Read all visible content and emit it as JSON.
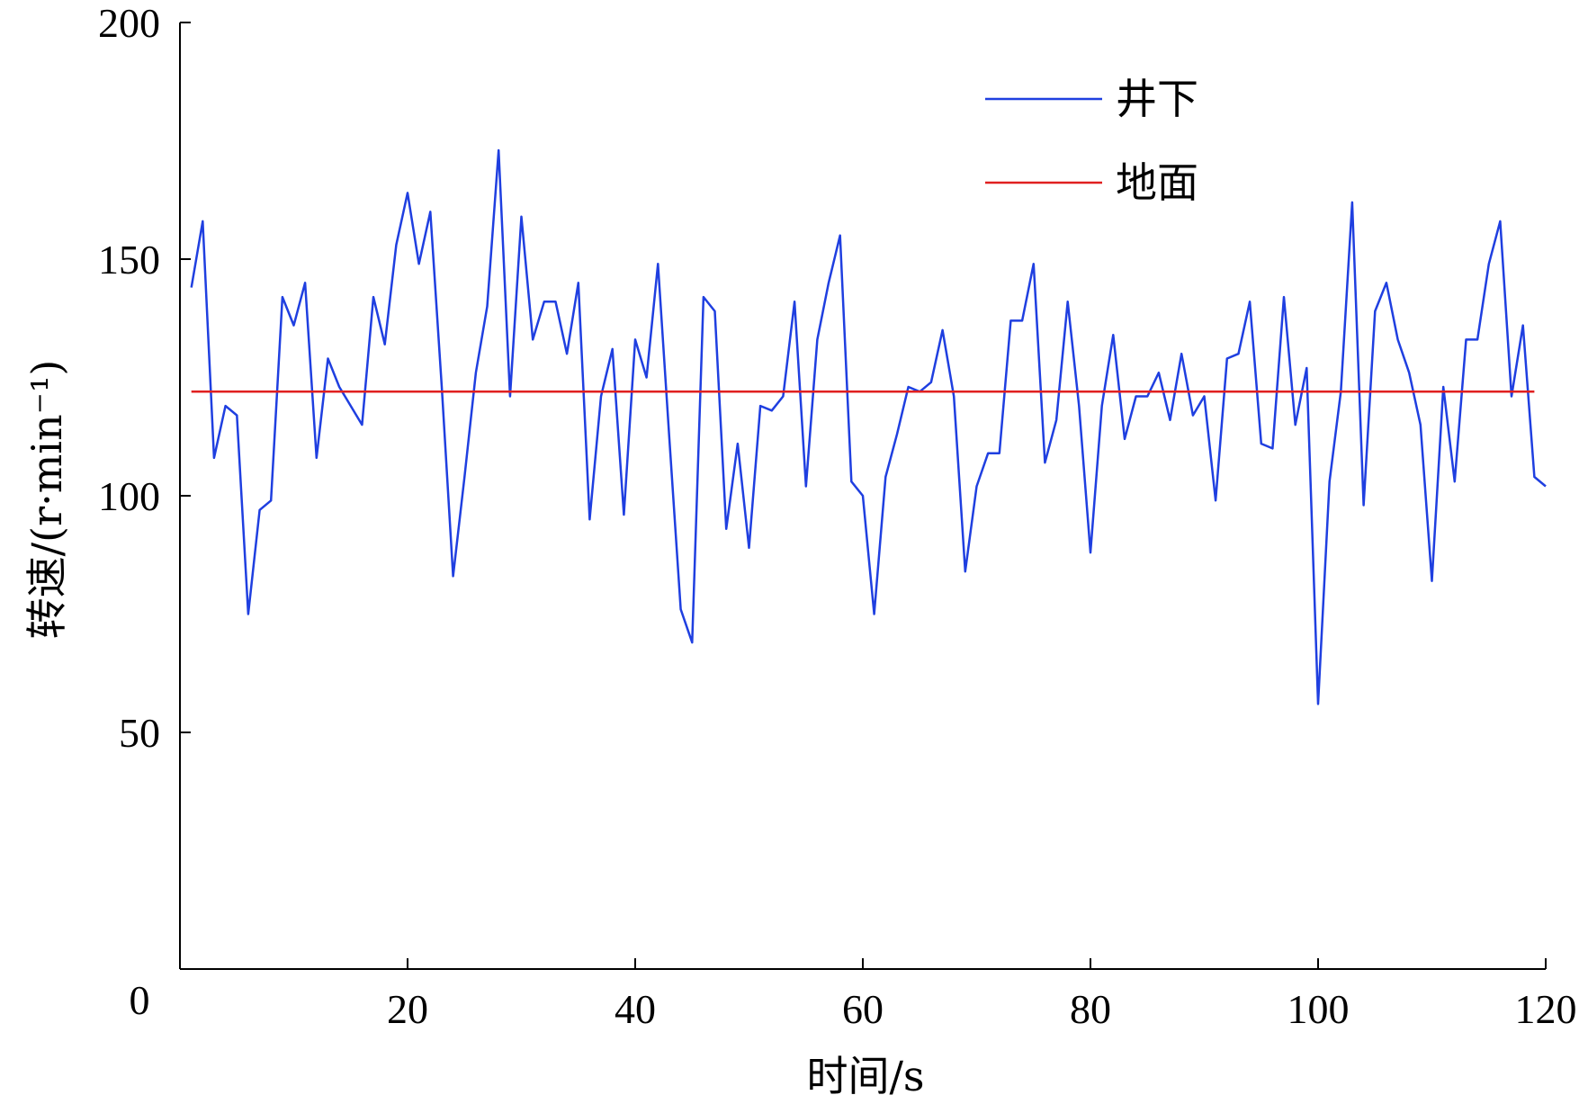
{
  "chart_data": {
    "type": "line",
    "xlabel": "时间/s",
    "ylabel": "转速/(r·min⁻¹)",
    "xlim": [
      0,
      120
    ],
    "ylim": [
      0,
      200
    ],
    "xticks": [
      0,
      20,
      40,
      60,
      80,
      100,
      120
    ],
    "yticks": [
      50,
      100,
      150,
      200
    ],
    "xtick_labels": [
      "0",
      "20",
      "40",
      "60",
      "80",
      "100",
      "120"
    ],
    "ytick_labels": [
      "50",
      "100",
      "150",
      "200"
    ],
    "grid": false,
    "legend_position": "top-right",
    "series": [
      {
        "name": "井下",
        "color": "#1f3fe0",
        "x": [
          1,
          2,
          3,
          4,
          5,
          6,
          7,
          8,
          9,
          10,
          11,
          12,
          13,
          14,
          15,
          16,
          17,
          18,
          19,
          20,
          21,
          22,
          23,
          24,
          25,
          26,
          27,
          28,
          29,
          30,
          31,
          32,
          33,
          34,
          35,
          36,
          37,
          38,
          39,
          40,
          41,
          42,
          43,
          44,
          45,
          46,
          47,
          48,
          49,
          50,
          51,
          52,
          53,
          54,
          55,
          56,
          57,
          58,
          59,
          60,
          61,
          62,
          63,
          64,
          65,
          66,
          67,
          68,
          69,
          70,
          71,
          72,
          73,
          74,
          75,
          76,
          77,
          78,
          79,
          80,
          81,
          82,
          83,
          84,
          85,
          86,
          87,
          88,
          89,
          90,
          91,
          92,
          93,
          94,
          95,
          96,
          97,
          98,
          99,
          100,
          101,
          102,
          103,
          104,
          105,
          106,
          107,
          108,
          109,
          110,
          111,
          112,
          113,
          114,
          115,
          116,
          117,
          118,
          119,
          120
        ],
        "y": [
          144,
          158,
          108,
          119,
          117,
          75,
          97,
          99,
          142,
          136,
          145,
          108,
          129,
          123,
          119,
          115,
          142,
          132,
          153,
          164,
          149,
          160,
          123,
          83,
          104,
          126,
          140,
          173,
          121,
          159,
          133,
          141,
          141,
          130,
          145,
          95,
          121,
          131,
          96,
          133,
          125,
          149,
          112,
          76,
          69,
          142,
          139,
          93,
          111,
          89,
          119,
          118,
          121,
          141,
          102,
          133,
          145,
          155,
          103,
          100,
          75,
          104,
          113,
          123,
          122,
          124,
          135,
          121,
          84,
          102,
          109,
          109,
          137,
          137,
          149,
          107,
          116,
          141,
          119,
          88,
          119,
          134,
          112,
          121,
          121,
          126,
          116,
          130,
          117,
          121,
          99,
          129,
          130,
          141,
          111,
          110,
          142,
          115,
          127,
          56,
          103,
          122,
          162,
          98,
          139,
          145,
          133,
          126,
          115,
          82,
          123,
          103,
          133,
          133,
          149,
          158,
          121,
          136,
          104,
          102
        ]
      },
      {
        "name": "地面",
        "color": "#e02020",
        "x": [
          1,
          119
        ],
        "y": [
          122,
          122
        ]
      }
    ]
  }
}
